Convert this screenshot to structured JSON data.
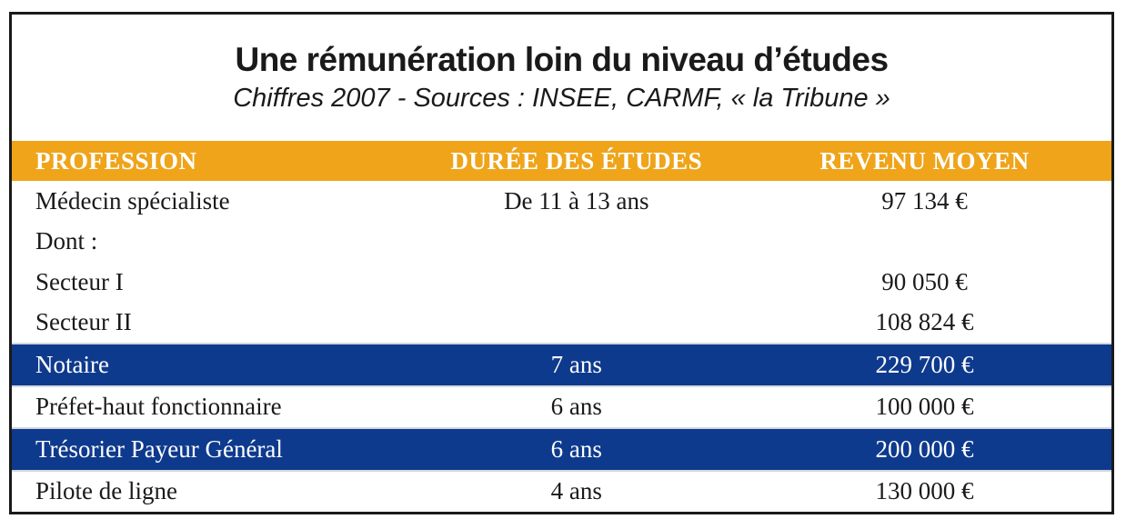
{
  "chart_data": {
    "type": "table",
    "title": "Une rémunération loin du niveau d’études",
    "subtitle": "Chiffres 2007 - Sources : INSEE, CARMF, « la Tribune »",
    "columns": [
      "PROFESSION",
      "DURÉE DES ÉTUDES",
      "REVENU MOYEN"
    ],
    "rows": [
      {
        "profession": "Médecin spécialiste",
        "duration": "De 11 à 13 ans",
        "income": "97 134 €",
        "highlight": false
      },
      {
        "profession": "Dont :",
        "duration": "",
        "income": "",
        "highlight": false
      },
      {
        "profession": "Secteur I",
        "duration": "",
        "income": "90 050 €",
        "highlight": false
      },
      {
        "profession": "Secteur II",
        "duration": "",
        "income": "108 824 €",
        "highlight": false
      },
      {
        "profession": "Notaire",
        "duration": "7 ans",
        "income": "229 700 €",
        "highlight": true
      },
      {
        "profession": "Préfet-haut fonctionnaire",
        "duration": "6 ans",
        "income": "100 000 €",
        "highlight": false
      },
      {
        "profession": "Trésorier Payeur Général",
        "duration": "6 ans",
        "income": "200 000 €",
        "highlight": true
      },
      {
        "profession": "Pilote de ligne",
        "duration": "4 ans",
        "income": "130 000 €",
        "highlight": false
      }
    ]
  },
  "colors": {
    "header_bg": "#EFA41A",
    "highlight_bg": "#0E3A8D",
    "frame_border": "#1A1A1A",
    "text": "#1A1A1A",
    "header_text": "#FFFFFF",
    "highlight_text": "#FFFFFF",
    "row_separator": "#D4D7E0"
  }
}
